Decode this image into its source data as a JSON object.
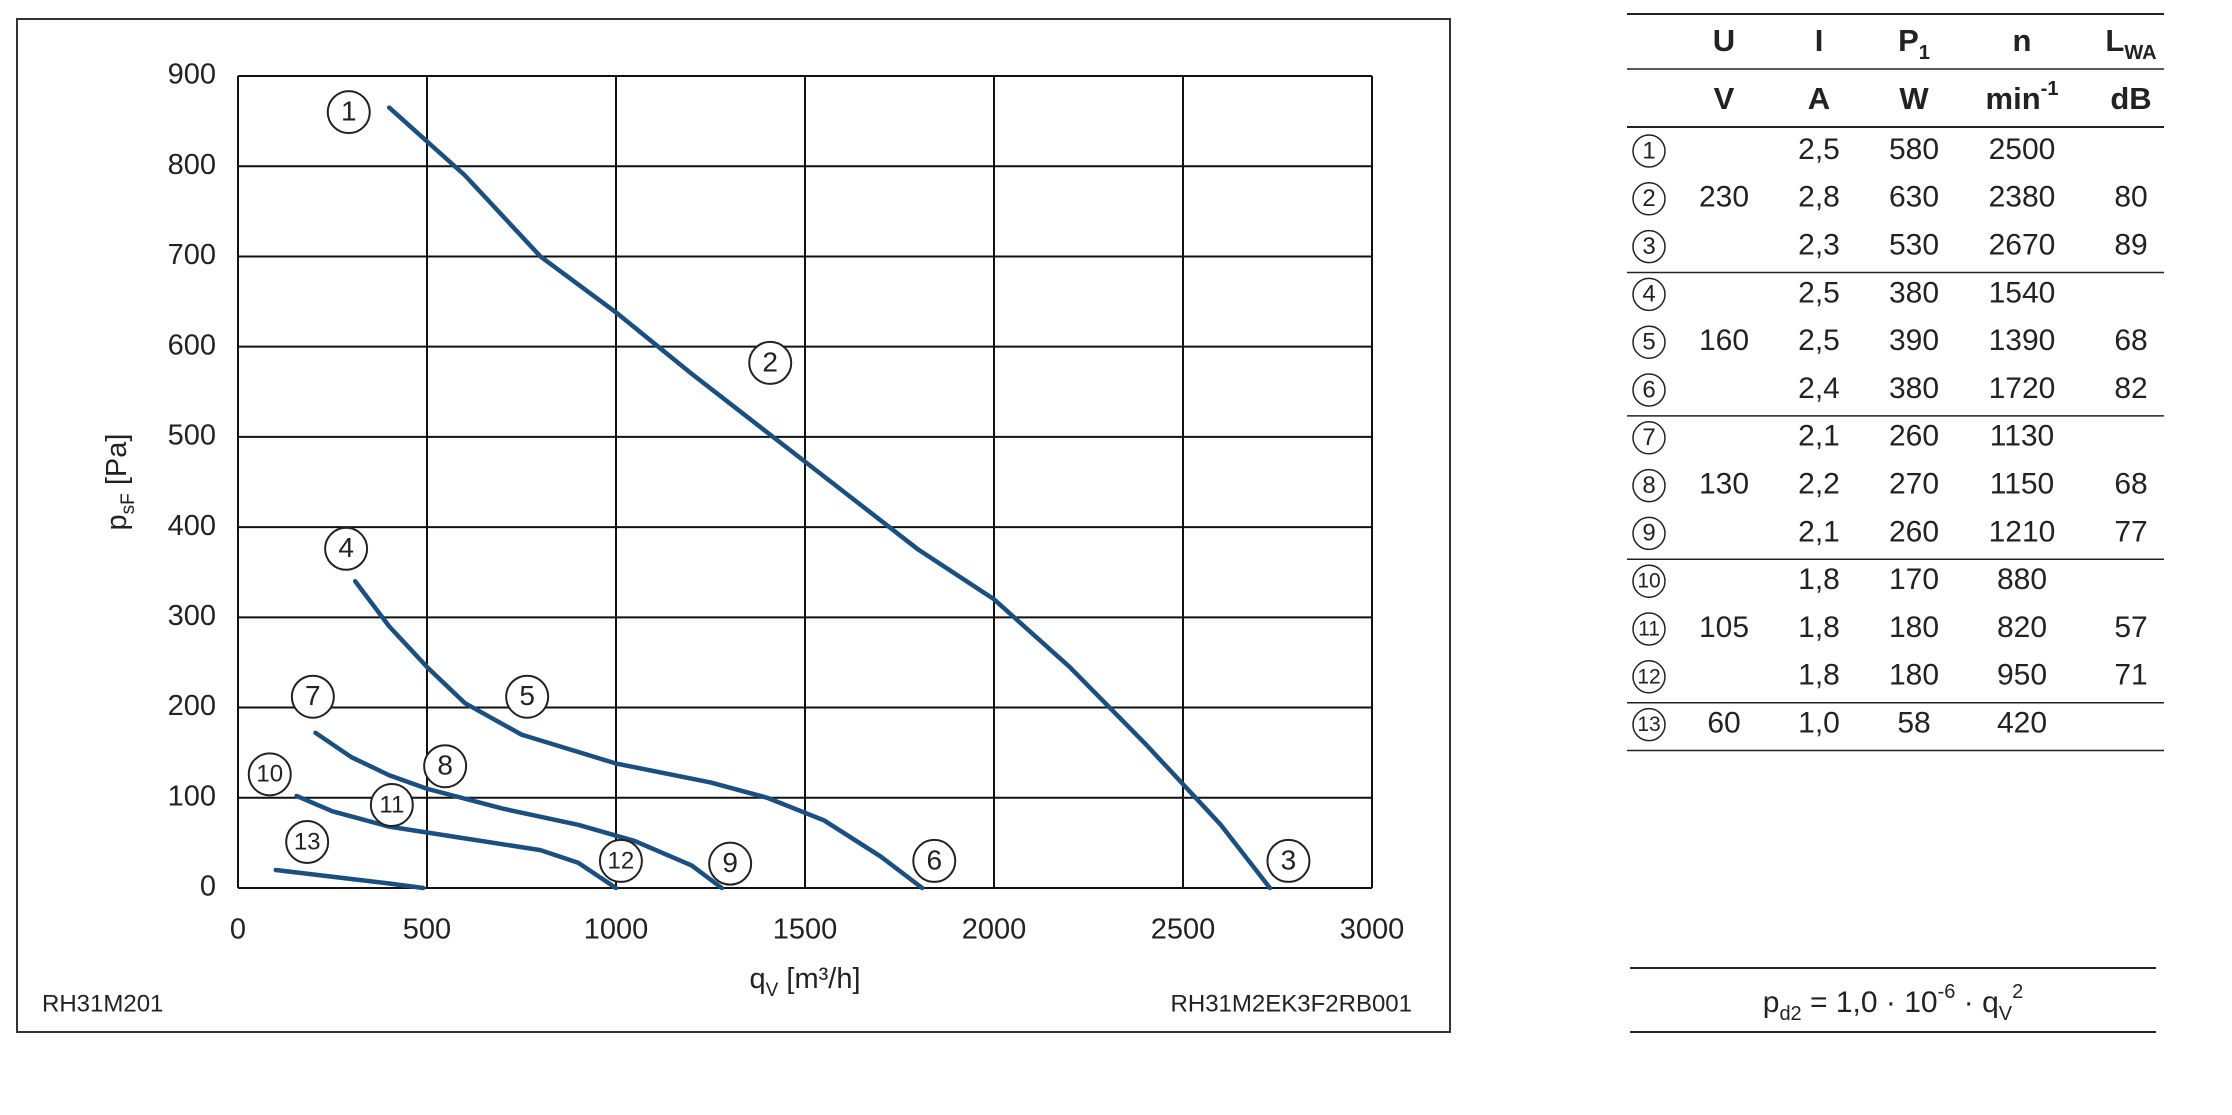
{
  "chart_data": {
    "type": "line",
    "xlim": [
      0,
      3000
    ],
    "xticks": [
      0,
      500,
      1000,
      1500,
      2000,
      2500,
      3000
    ],
    "ylim": [
      0,
      900
    ],
    "yticks": [
      0,
      100,
      200,
      300,
      400,
      500,
      600,
      700,
      800,
      900
    ],
    "grid": true,
    "xlabel": {
      "text": "q",
      "sub": "V",
      "unit": " [m³/h]"
    },
    "ylabel": {
      "text": "p",
      "sub": "sF",
      "unit": " [Pa]"
    },
    "series": [
      {
        "color": "#1a4f80",
        "x": [
          400,
          600,
          800,
          1000,
          1200,
          1400,
          1600,
          1800,
          2000,
          2200,
          2400,
          2600,
          2730
        ],
        "values": [
          865,
          790,
          700,
          638,
          570,
          505,
          440,
          375,
          320,
          245,
          160,
          70,
          0
        ]
      },
      {
        "color": "#1a4f80",
        "x": [
          310,
          400,
          500,
          600,
          750,
          1000,
          1250,
          1400,
          1550,
          1700,
          1810
        ],
        "values": [
          340,
          290,
          245,
          205,
          170,
          138,
          117,
          100,
          75,
          35,
          0
        ]
      },
      {
        "color": "#1a4f80",
        "x": [
          205,
          300,
          400,
          500,
          700,
          900,
          1050,
          1200,
          1280
        ],
        "values": [
          172,
          145,
          125,
          110,
          88,
          70,
          52,
          25,
          0
        ]
      },
      {
        "color": "#1a4f80",
        "x": [
          155,
          250,
          400,
          600,
          800,
          900,
          1000
        ],
        "values": [
          102,
          85,
          68,
          55,
          42,
          28,
          0
        ]
      },
      {
        "color": "#1a4f80",
        "x": [
          100,
          200,
          300,
          400,
          490
        ],
        "values": [
          20,
          15,
          10,
          5,
          0
        ]
      }
    ],
    "annotations": [
      {
        "text": "1",
        "x": 293,
        "y": 860
      },
      {
        "text": "2",
        "x": 1408,
        "y": 582
      },
      {
        "text": "3",
        "x": 2779,
        "y": 30
      },
      {
        "text": "4",
        "x": 286,
        "y": 376
      },
      {
        "text": "5",
        "x": 765,
        "y": 212
      },
      {
        "text": "6",
        "x": 1842,
        "y": 30
      },
      {
        "text": "7",
        "x": 198,
        "y": 212
      },
      {
        "text": "8",
        "x": 548,
        "y": 135
      },
      {
        "text": "9",
        "x": 1302,
        "y": 27
      },
      {
        "text": "10",
        "x": 84,
        "y": 126
      },
      {
        "text": "11",
        "x": 407,
        "y": 92
      },
      {
        "text": "12",
        "x": 1013,
        "y": 30
      },
      {
        "text": "13",
        "x": 183,
        "y": 51
      }
    ],
    "footer_left": "RH31M201",
    "footer_right": "RH31M2EK3F2RB001"
  },
  "table": {
    "header": [
      {
        "text": "U"
      },
      {
        "text": "I"
      },
      {
        "text": "P",
        "sub": "1"
      },
      {
        "text": "n"
      },
      {
        "text": "L",
        "sub": "WA"
      }
    ],
    "units": [
      {
        "text": "V"
      },
      {
        "text": "A"
      },
      {
        "text": "W"
      },
      {
        "text": "min",
        "sup": "-1"
      },
      {
        "text": "dB"
      }
    ],
    "groups": [
      {
        "U": "230",
        "rows": [
          {
            "id": "1",
            "I": "2,5",
            "P": "580",
            "n": "2500"
          },
          {
            "id": "2",
            "I": "2,8",
            "P": "630",
            "n": "2380",
            "L": "80"
          },
          {
            "id": "3",
            "I": "2,3",
            "P": "530",
            "n": "2670",
            "L": "89"
          }
        ]
      },
      {
        "U": "160",
        "rows": [
          {
            "id": "4",
            "I": "2,5",
            "P": "380",
            "n": "1540"
          },
          {
            "id": "5",
            "I": "2,5",
            "P": "390",
            "n": "1390",
            "L": "68"
          },
          {
            "id": "6",
            "I": "2,4",
            "P": "380",
            "n": "1720",
            "L": "82"
          }
        ]
      },
      {
        "U": "130",
        "rows": [
          {
            "id": "7",
            "I": "2,1",
            "P": "260",
            "n": "1130"
          },
          {
            "id": "8",
            "I": "2,2",
            "P": "270",
            "n": "1150",
            "L": "68"
          },
          {
            "id": "9",
            "I": "2,1",
            "P": "260",
            "n": "1210",
            "L": "77"
          }
        ]
      },
      {
        "U": "105",
        "rows": [
          {
            "id": "10",
            "I": "1,8",
            "P": "170",
            "n": "880"
          },
          {
            "id": "11",
            "I": "1,8",
            "P": "180",
            "n": "820",
            "L": "57"
          },
          {
            "id": "12",
            "I": "1,8",
            "P": "180",
            "n": "950",
            "L": "71"
          }
        ]
      },
      {
        "U": "60",
        "rows": [
          {
            "id": "13",
            "I": "1,0",
            "P": "58",
            "n": "420"
          }
        ]
      }
    ]
  },
  "formula": {
    "lhs": "p",
    "lhs_sub": "d2",
    "mid": " = 1,0 · 10",
    "exp": "-6",
    "rest": " · q",
    "rest_sub": "V",
    "rest_sup": "2"
  }
}
